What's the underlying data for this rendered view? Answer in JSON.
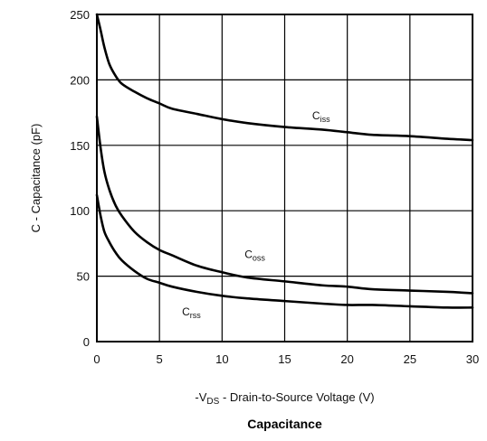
{
  "chart_data": {
    "type": "line",
    "title": "Capacitance",
    "xlabel": "-V",
    "xlabel_sub": "DS",
    "xlabel_rest": " - Drain-to-Source Voltage (V)",
    "ylabel": "C - Capacitance (pF)",
    "xlim": [
      0,
      30
    ],
    "ylim": [
      0,
      250
    ],
    "grid": true,
    "x_ticks": [
      0,
      5,
      10,
      15,
      20,
      25,
      30
    ],
    "y_ticks": [
      0,
      50,
      100,
      150,
      200,
      250
    ],
    "x_tick_labels": [
      "0",
      "5",
      "10",
      "15",
      "20",
      "25",
      "30"
    ],
    "y_tick_labels": [
      "0",
      "50",
      "100",
      "150",
      "200",
      "250"
    ],
    "series": [
      {
        "name": "Ciss",
        "label_main": "C",
        "label_sub": "iss",
        "color": "#000000",
        "x": [
          0,
          0.3,
          0.6,
          1,
          1.5,
          2,
          3,
          4,
          5,
          6,
          8,
          10,
          12,
          15,
          18,
          20,
          22,
          25,
          28,
          30
        ],
        "y": [
          250,
          238,
          225,
          212,
          203,
          197,
          191,
          186,
          182,
          178,
          174,
          170,
          167,
          164,
          162,
          160,
          158,
          157,
          155,
          154
        ]
      },
      {
        "name": "Coss",
        "label_main": "C",
        "label_sub": "oss",
        "color": "#000000",
        "x": [
          0,
          0.3,
          0.6,
          1,
          1.5,
          2,
          3,
          4,
          5,
          6,
          8,
          10,
          12,
          15,
          18,
          20,
          22,
          25,
          28,
          30
        ],
        "y": [
          172,
          148,
          130,
          116,
          104,
          96,
          84,
          76,
          70,
          66,
          58,
          53,
          49,
          46,
          43,
          42,
          40,
          39,
          38,
          37
        ]
      },
      {
        "name": "Crss",
        "label_main": "C",
        "label_sub": "rss",
        "color": "#000000",
        "x": [
          0,
          0.3,
          0.6,
          1,
          1.5,
          2,
          3,
          4,
          5,
          6,
          8,
          10,
          12,
          15,
          18,
          20,
          22,
          25,
          28,
          30
        ],
        "y": [
          112,
          96,
          84,
          76,
          68,
          62,
          54,
          48,
          45,
          42,
          38,
          35,
          33,
          31,
          29,
          28,
          28,
          27,
          26,
          26
        ]
      }
    ],
    "annotations": [
      {
        "series": "Ciss",
        "x": 17.2,
        "y": 170
      },
      {
        "series": "Coss",
        "x": 11.8,
        "y": 64
      },
      {
        "series": "Crss",
        "x": 6.8,
        "y": 20
      }
    ]
  }
}
